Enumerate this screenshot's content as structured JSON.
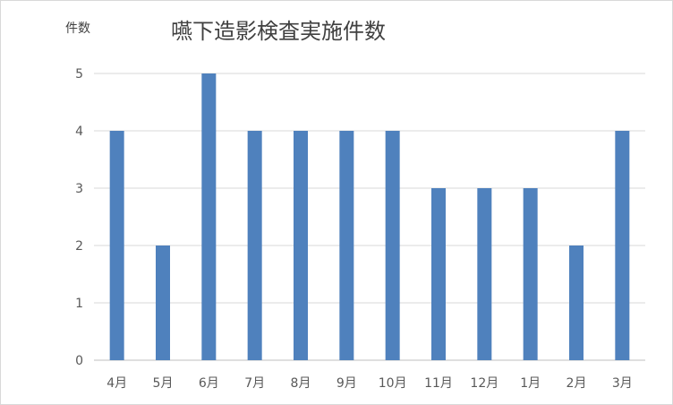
{
  "chart_data": {
    "type": "bar",
    "title": "嚥下造影検査実施件数",
    "ylabel": "件数",
    "xlabel": "",
    "categories": [
      "4月",
      "5月",
      "6月",
      "7月",
      "8月",
      "9月",
      "10月",
      "11月",
      "12月",
      "1月",
      "2月",
      "3月"
    ],
    "values": [
      4,
      2,
      5,
      4,
      4,
      4,
      4,
      3,
      3,
      3,
      2,
      4
    ],
    "ylim": [
      0,
      5
    ],
    "yticks": [
      "0",
      "1",
      "2",
      "3",
      "4",
      "5"
    ],
    "grid": true,
    "legend": "none",
    "colors": {
      "bar": "#4f81bd",
      "grid": "#d9d9d9",
      "axis": "#bfbfbf"
    }
  }
}
